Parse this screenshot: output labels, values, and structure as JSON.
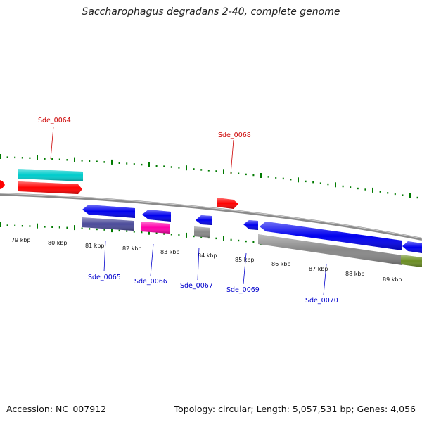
{
  "title": "Saccharophagus degradans 2-40, complete genome",
  "footer": {
    "accession": "Accession: NC_007912",
    "topology": "Topology: circular; Length: 5,057,531 bp; Genes: 4,056"
  },
  "colors": {
    "forward_label": "#cc0000",
    "reverse_label": "#0000cc",
    "backbone": "#888888",
    "ticks": "#007a00"
  },
  "kbp_labels": [
    "79 kbp",
    "80 kbp",
    "81 kbp",
    "82 kbp",
    "83 kbp",
    "84 kbp",
    "85 kbp",
    "86 kbp",
    "87 kbp",
    "88 kbp",
    "89 kbp"
  ],
  "gene_labels": [
    "Sde_0064",
    "Sde_0068",
    "Sde_0065",
    "Sde_0066",
    "Sde_0067",
    "Sde_0069",
    "Sde_0070"
  ]
}
